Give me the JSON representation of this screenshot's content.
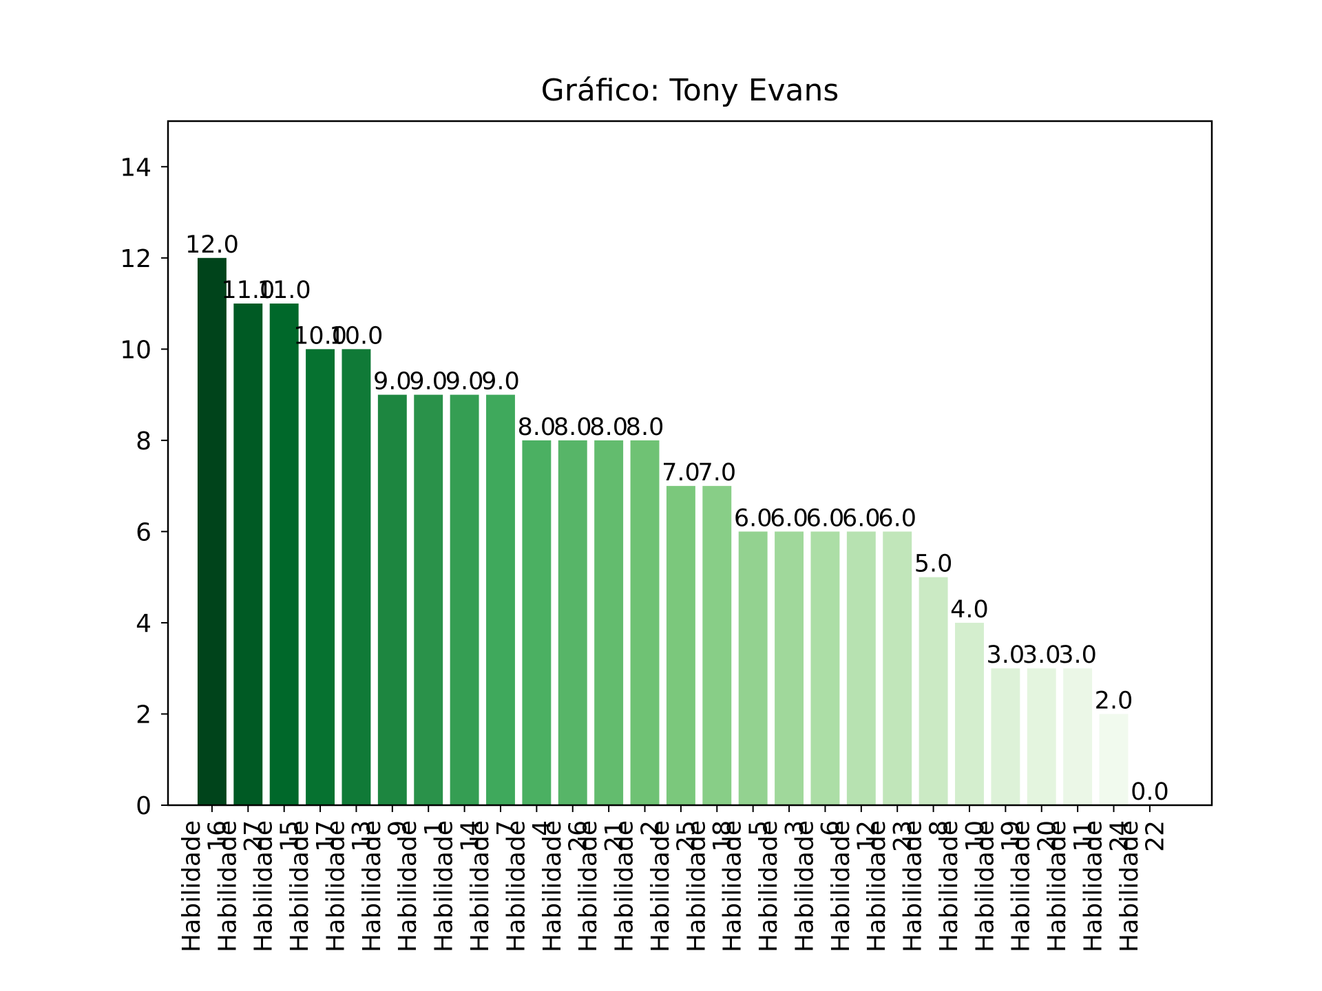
{
  "chart_data": {
    "type": "bar",
    "title": "Gráfico: Tony Evans",
    "xlabel": "",
    "ylabel": "",
    "ylim": [
      0,
      15
    ],
    "yticks": [
      0,
      2,
      4,
      6,
      8,
      10,
      12,
      14
    ],
    "grid": false,
    "legend": "none",
    "categories": [
      "Habilidade 16",
      "Habilidade 27",
      "Habilidade 15",
      "Habilidade 17",
      "Habilidade 13",
      "Habilidade 9",
      "Habilidade 1",
      "Habilidade 14",
      "Habilidade 7",
      "Habilidade 4",
      "Habilidade 26",
      "Habilidade 21",
      "Habilidade 2",
      "Habilidade 25",
      "Habilidade 18",
      "Habilidade 5",
      "Habilidade 3",
      "Habilidade 6",
      "Habilidade 12",
      "Habilidade 23",
      "Habilidade 8",
      "Habilidade 10",
      "Habilidade 19",
      "Habilidade 20",
      "Habilidade 11",
      "Habilidade 24",
      "Habilidade 22"
    ],
    "values": [
      12.0,
      11.0,
      11.0,
      10.0,
      10.0,
      9.0,
      9.0,
      9.0,
      9.0,
      8.0,
      8.0,
      8.0,
      8.0,
      7.0,
      7.0,
      6.0,
      6.0,
      6.0,
      6.0,
      6.0,
      5.0,
      4.0,
      3.0,
      3.0,
      3.0,
      2.0,
      0.0
    ],
    "data_labels": [
      "12.0",
      "11.0",
      "11.0",
      "10.0",
      "10.0",
      "9.0",
      "9.0",
      "9.0",
      "9.0",
      "8.0",
      "8.0",
      "8.0",
      "8.0",
      "7.0",
      "7.0",
      "6.0",
      "6.0",
      "6.0",
      "6.0",
      "6.0",
      "5.0",
      "4.0",
      "3.0",
      "3.0",
      "3.0",
      "2.0",
      "0.0"
    ],
    "colors": [
      "#00441b",
      "#005a24",
      "#00682a",
      "#067230",
      "#107a37",
      "#1d8640",
      "#2a924a",
      "#359e53",
      "#3fa95c",
      "#4bb062",
      "#57b568",
      "#63bc6e",
      "#6fc274",
      "#7bc87c",
      "#88ce87",
      "#93d290",
      "#a0d89b",
      "#acdea6",
      "#b7e2b1",
      "#c1e6ba",
      "#cbeac4",
      "#d4eece",
      "#ddf2d8",
      "#e4f5df",
      "#ebf7e7",
      "#f1faee",
      "#f7fcf5"
    ]
  }
}
